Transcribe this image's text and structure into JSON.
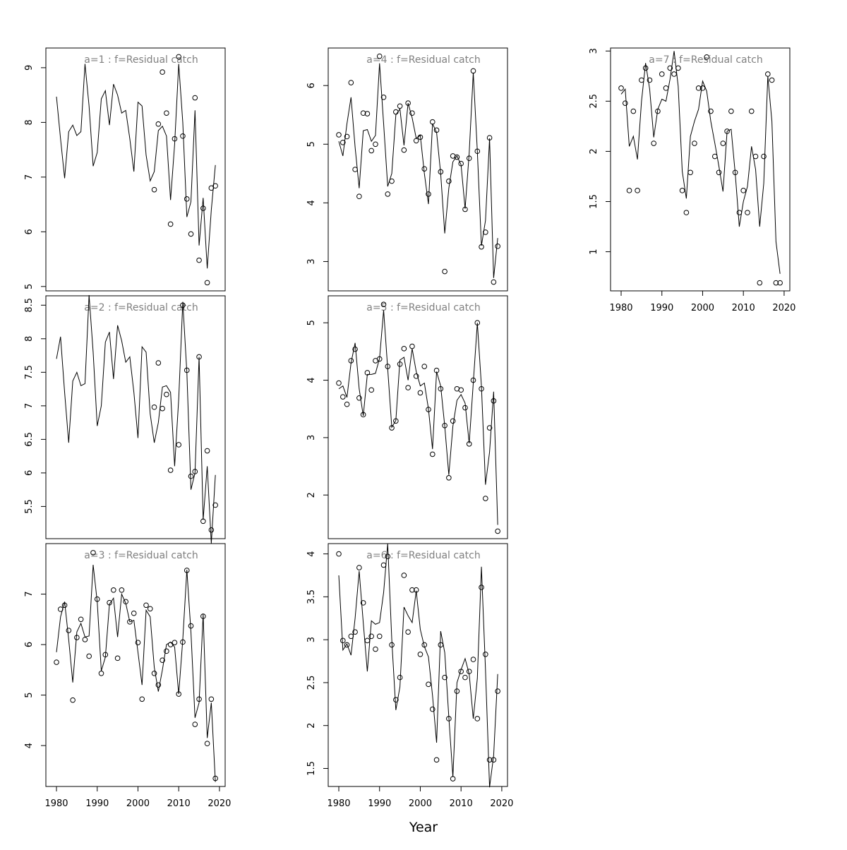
{
  "xlabel": "Year",
  "chart_data": [
    {
      "type": "line",
      "title": "a=1  :  f=Residual catch",
      "x": [
        1980,
        1981,
        1982,
        1983,
        1984,
        1985,
        1986,
        1987,
        1988,
        1989,
        1990,
        1991,
        1992,
        1993,
        1994,
        1995,
        1996,
        1997,
        1998,
        1999,
        2000,
        2001,
        2002,
        2003,
        2004,
        2005,
        2006,
        2007,
        2008,
        2009,
        2010,
        2011,
        2012,
        2013,
        2014,
        2015,
        2016,
        2017,
        2018,
        2019
      ],
      "line": [
        8.47,
        7.7,
        6.98,
        7.83,
        7.95,
        7.76,
        7.83,
        9.07,
        8.3,
        7.2,
        7.45,
        8.43,
        8.58,
        7.95,
        8.7,
        8.5,
        8.17,
        8.22,
        7.7,
        7.1,
        8.37,
        8.3,
        7.4,
        6.93,
        7.1,
        7.85,
        7.93,
        7.75,
        6.58,
        7.6,
        9.07,
        8.0,
        6.27,
        6.55,
        8.22,
        5.75,
        6.62,
        5.33,
        6.4,
        7.22
      ],
      "points": [
        null,
        null,
        null,
        null,
        null,
        null,
        null,
        null,
        null,
        null,
        null,
        null,
        null,
        null,
        null,
        null,
        null,
        null,
        null,
        null,
        null,
        null,
        null,
        null,
        6.77,
        7.97,
        8.92,
        8.17,
        6.14,
        7.7,
        9.2,
        7.75,
        6.6,
        5.96,
        8.45,
        5.48,
        6.43,
        5.07,
        6.8,
        6.84
      ],
      "xlim": [
        1977.4,
        2021.4
      ],
      "ylim": [
        4.92,
        9.36
      ],
      "yticks": [
        5,
        6,
        7,
        8,
        9
      ]
    },
    {
      "type": "line",
      "title": "a=2  :  f=Residual catch",
      "x": [
        1980,
        1981,
        1982,
        1983,
        1984,
        1985,
        1986,
        1987,
        1988,
        1989,
        1990,
        1991,
        1992,
        1993,
        1994,
        1995,
        1996,
        1997,
        1998,
        1999,
        2000,
        2001,
        2002,
        2003,
        2004,
        2005,
        2006,
        2007,
        2008,
        2009,
        2010,
        2011,
        2012,
        2013,
        2014,
        2015,
        2016,
        2017,
        2018,
        2019
      ],
      "line": [
        7.7,
        8.03,
        7.2,
        6.45,
        7.37,
        7.5,
        7.3,
        7.33,
        8.65,
        7.8,
        6.7,
        7.0,
        7.95,
        8.1,
        7.4,
        8.2,
        7.97,
        7.65,
        7.73,
        7.2,
        6.52,
        7.88,
        7.8,
        6.88,
        6.45,
        6.75,
        7.28,
        7.3,
        7.2,
        6.1,
        7.1,
        8.55,
        7.5,
        5.75,
        6.0,
        7.73,
        5.3,
        6.1,
        4.95,
        5.97
      ],
      "points": [
        null,
        null,
        null,
        null,
        null,
        null,
        null,
        null,
        null,
        null,
        null,
        null,
        null,
        null,
        null,
        null,
        null,
        null,
        null,
        null,
        null,
        null,
        null,
        null,
        6.98,
        7.64,
        6.96,
        7.17,
        6.04,
        null,
        6.42,
        8.5,
        7.53,
        5.95,
        6.02,
        7.73,
        5.28,
        6.33,
        5.15,
        5.52
      ],
      "xlim": [
        1977.4,
        2021.4
      ],
      "ylim": [
        5.02,
        8.64
      ],
      "yticks": [
        5.5,
        6.0,
        6.5,
        7.0,
        7.5,
        8.0,
        8.5
      ]
    },
    {
      "type": "line",
      "title": "a=3  :  f=Residual catch",
      "x": [
        1980,
        1981,
        1982,
        1983,
        1984,
        1985,
        1986,
        1987,
        1988,
        1989,
        1990,
        1991,
        1992,
        1993,
        1994,
        1995,
        1996,
        1997,
        1998,
        1999,
        2000,
        2001,
        2002,
        2003,
        2004,
        2005,
        2006,
        2007,
        2008,
        2009,
        2010,
        2011,
        2012,
        2013,
        2014,
        2015,
        2016,
        2017,
        2018,
        2019
      ],
      "line": [
        5.85,
        6.55,
        6.85,
        6.1,
        5.25,
        6.25,
        6.42,
        6.15,
        6.17,
        7.58,
        6.85,
        5.48,
        5.75,
        6.8,
        6.92,
        6.15,
        7.0,
        6.82,
        6.45,
        6.48,
        5.85,
        5.2,
        6.68,
        6.55,
        5.55,
        5.07,
        5.5,
        6.0,
        6.05,
        5.95,
        5.02,
        6.1,
        7.48,
        6.25,
        4.55,
        4.85,
        6.6,
        4.15,
        4.85,
        3.28
      ],
      "points": [
        5.65,
        6.7,
        6.78,
        6.28,
        4.9,
        6.14,
        6.5,
        6.1,
        5.77,
        7.82,
        6.9,
        5.43,
        5.8,
        6.83,
        7.08,
        5.73,
        7.08,
        6.85,
        6.45,
        6.62,
        6.04,
        4.92,
        6.78,
        6.71,
        5.43,
        5.2,
        5.69,
        5.87,
        6.0,
        6.04,
        5.02,
        6.05,
        7.47,
        6.37,
        4.42,
        4.92,
        6.56,
        4.04,
        4.92,
        3.35
      ],
      "xlim": [
        1977.4,
        2021.4
      ],
      "ylim": [
        3.19,
        8.0
      ],
      "yticks": [
        4,
        5,
        6,
        7
      ],
      "xticks": [
        1980,
        1990,
        2000,
        2010,
        2020
      ]
    },
    {
      "type": "line",
      "title": "a=4  :  f=Residual catch",
      "x": [
        1980,
        1981,
        1982,
        1983,
        1984,
        1985,
        1986,
        1987,
        1988,
        1989,
        1990,
        1991,
        1992,
        1993,
        1994,
        1995,
        1996,
        1997,
        1998,
        1999,
        2000,
        2001,
        2002,
        2003,
        2004,
        2005,
        2006,
        2007,
        2008,
        2009,
        2010,
        2011,
        2012,
        2013,
        2014,
        2015,
        2016,
        2017,
        2018,
        2019
      ],
      "line": [
        5.05,
        4.8,
        5.35,
        5.8,
        4.95,
        4.25,
        5.23,
        5.25,
        5.05,
        5.15,
        6.38,
        5.35,
        4.28,
        4.5,
        5.5,
        5.6,
        4.98,
        5.7,
        5.45,
        5.1,
        5.15,
        4.5,
        3.98,
        5.35,
        5.2,
        4.5,
        3.48,
        4.25,
        4.7,
        4.8,
        4.65,
        3.9,
        4.85,
        6.22,
        4.88,
        3.27,
        3.7,
        5.1,
        2.72,
        3.4
      ],
      "points": [
        5.16,
        5.03,
        5.13,
        6.05,
        4.57,
        4.11,
        5.53,
        5.52,
        4.89,
        5.0,
        6.5,
        5.8,
        4.15,
        4.37,
        5.55,
        5.65,
        4.9,
        5.7,
        5.53,
        5.06,
        5.12,
        4.58,
        4.15,
        5.38,
        5.24,
        4.53,
        2.83,
        4.37,
        4.8,
        4.78,
        4.67,
        3.89,
        4.76,
        6.25,
        4.88,
        3.25,
        3.5,
        5.11,
        2.65,
        3.26
      ],
      "xlim": [
        1977.4,
        2021.4
      ],
      "ylim": [
        2.5,
        6.64
      ],
      "yticks": [
        3,
        4,
        5,
        6
      ]
    },
    {
      "type": "line",
      "title": "a=5  :  f=Residual catch",
      "x": [
        1980,
        1981,
        1982,
        1983,
        1984,
        1985,
        1986,
        1987,
        1988,
        1989,
        1990,
        1991,
        1992,
        1993,
        1994,
        1995,
        1996,
        1997,
        1998,
        1999,
        2000,
        2001,
        2002,
        2003,
        2004,
        2005,
        2006,
        2007,
        2008,
        2009,
        2010,
        2011,
        2012,
        2013,
        2014,
        2015,
        2016,
        2017,
        2018,
        2019
      ],
      "line": [
        3.85,
        3.9,
        3.7,
        4.3,
        4.65,
        3.85,
        3.38,
        4.1,
        4.1,
        4.12,
        4.38,
        5.22,
        4.2,
        3.18,
        3.3,
        4.35,
        4.4,
        4.0,
        4.55,
        4.15,
        3.9,
        3.95,
        3.5,
        2.8,
        4.15,
        3.9,
        3.2,
        2.35,
        3.2,
        3.65,
        3.75,
        3.6,
        2.9,
        3.95,
        5.0,
        3.9,
        2.18,
        2.75,
        3.8,
        1.48
      ],
      "points": [
        3.95,
        3.71,
        3.58,
        4.34,
        4.54,
        3.69,
        3.4,
        4.13,
        3.83,
        4.34,
        4.37,
        5.32,
        4.24,
        3.17,
        3.29,
        4.28,
        4.55,
        3.87,
        4.59,
        4.07,
        3.78,
        4.24,
        3.49,
        2.71,
        4.17,
        3.85,
        3.21,
        2.3,
        3.29,
        3.85,
        3.83,
        3.52,
        2.89,
        4.0,
        5.0,
        3.85,
        1.94,
        3.17,
        3.64,
        1.37
      ],
      "xlim": [
        1977.4,
        2021.4
      ],
      "ylim": [
        1.24,
        5.47
      ],
      "yticks": [
        2,
        3,
        4,
        5
      ]
    },
    {
      "type": "line",
      "title": "a=6  :  f=Residual catch",
      "x": [
        1980,
        1981,
        1982,
        1983,
        1984,
        1985,
        1986,
        1987,
        1988,
        1989,
        1990,
        1991,
        1992,
        1993,
        1994,
        1995,
        1996,
        1997,
        1998,
        1999,
        2000,
        2001,
        2002,
        2003,
        2004,
        2005,
        2006,
        2007,
        2008,
        2009,
        2010,
        2011,
        2012,
        2013,
        2014,
        2015,
        2016,
        2017,
        2018,
        2019
      ],
      "line": [
        3.75,
        2.88,
        2.95,
        2.82,
        3.25,
        3.8,
        3.2,
        2.63,
        3.22,
        3.18,
        3.2,
        3.55,
        4.12,
        3.0,
        2.18,
        2.45,
        3.38,
        3.28,
        3.2,
        3.57,
        3.12,
        2.92,
        2.8,
        2.35,
        1.8,
        3.1,
        2.85,
        2.1,
        1.4,
        2.5,
        2.65,
        2.78,
        2.6,
        2.08,
        2.55,
        3.85,
        2.65,
        1.28,
        1.65,
        2.6
      ],
      "points": [
        4.0,
        2.99,
        2.94,
        3.04,
        3.09,
        3.84,
        3.43,
        2.99,
        3.04,
        2.89,
        3.04,
        3.87,
        3.97,
        2.94,
        2.3,
        2.56,
        3.75,
        3.09,
        3.58,
        3.58,
        2.83,
        2.94,
        2.48,
        2.19,
        1.6,
        2.94,
        2.56,
        2.08,
        1.38,
        2.4,
        2.63,
        2.56,
        2.63,
        2.77,
        2.08,
        3.61,
        2.83,
        1.6,
        1.6,
        2.4
      ],
      "xlim": [
        1977.4,
        2021.4
      ],
      "ylim": [
        1.29,
        4.12
      ],
      "yticks": [
        1.5,
        2.0,
        2.5,
        3.0,
        3.5,
        4.0
      ],
      "xticks": [
        1980,
        1990,
        2000,
        2010,
        2020
      ]
    },
    {
      "type": "line",
      "title": "a=7  :  f=Residual catch",
      "x": [
        1980,
        1981,
        1982,
        1983,
        1984,
        1985,
        1986,
        1987,
        1988,
        1989,
        1990,
        1991,
        1992,
        1993,
        1994,
        1995,
        1996,
        1997,
        1998,
        1999,
        2000,
        2001,
        2002,
        2003,
        2004,
        2005,
        2006,
        2007,
        2008,
        2009,
        2010,
        2011,
        2012,
        2013,
        2014,
        2015,
        2016,
        2017,
        2018,
        2019
      ],
      "line": [
        2.57,
        2.62,
        2.05,
        2.15,
        1.92,
        2.5,
        2.88,
        2.62,
        2.14,
        2.42,
        2.52,
        2.5,
        2.72,
        3.0,
        2.65,
        1.8,
        1.53,
        2.15,
        2.3,
        2.42,
        2.7,
        2.6,
        2.3,
        2.08,
        1.85,
        1.6,
        2.2,
        2.22,
        1.78,
        1.25,
        1.5,
        1.65,
        2.05,
        1.82,
        1.25,
        1.68,
        2.75,
        2.3,
        1.1,
        0.78
      ],
      "points": [
        2.63,
        2.48,
        1.61,
        2.4,
        1.61,
        2.71,
        2.83,
        2.71,
        2.08,
        2.4,
        2.77,
        2.63,
        2.83,
        2.77,
        2.83,
        1.61,
        1.39,
        1.79,
        2.08,
        2.63,
        2.63,
        2.94,
        2.4,
        1.95,
        1.79,
        2.08,
        2.2,
        2.4,
        1.79,
        1.39,
        1.61,
        1.39,
        2.4,
        1.95,
        0.69,
        1.95,
        2.77,
        2.71,
        0.69,
        0.69
      ],
      "xlim": [
        1977.4,
        2021.4
      ],
      "ylim": [
        0.61,
        3.03
      ],
      "yticks": [
        1.0,
        1.5,
        2.0,
        2.5,
        3.0
      ],
      "xticks": [
        1980,
        1990,
        2000,
        2010,
        2020
      ]
    }
  ]
}
